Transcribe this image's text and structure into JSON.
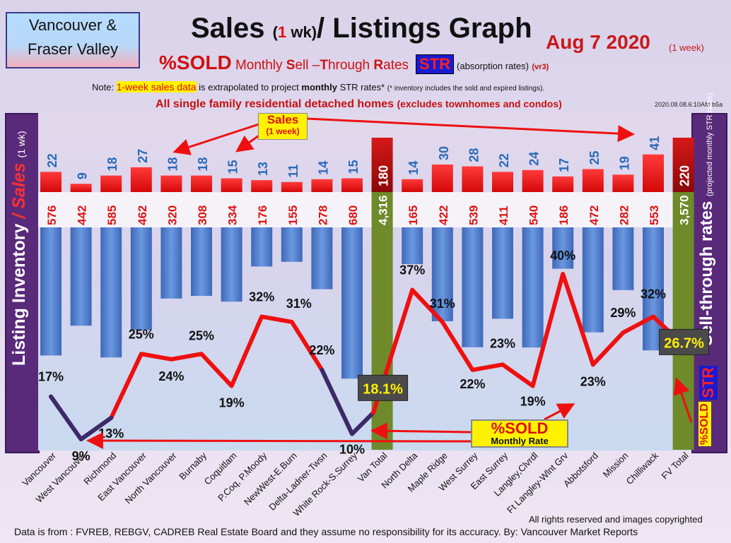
{
  "header": {
    "region_line1": "Vancouver &",
    "region_line2": "Fraser Valley",
    "title_a": "Sales ",
    "title_b": "(",
    "title_c": "1",
    "title_d": " wk)",
    "title_e": "/ Listings Graph",
    "date": "Aug 7  2020",
    "date_sub": "(1 week)",
    "subtitle_sold": "%SOLD",
    "subtitle_rest_1": " Monthly ",
    "subtitle_s": "S",
    "subtitle_rest_2": "ell –",
    "subtitle_t": "T",
    "subtitle_rest_3": "hrough ",
    "subtitle_r": "R",
    "subtitle_rest_4": "ates",
    "str_badge": "STR",
    "absorption": "(absorption rates)",
    "vr": "(vr3)",
    "note_a": "Note: ",
    "note_hl": "1-week sales data",
    "note_b": " is extrapolated to project ",
    "note_c": "monthly",
    "note_d": " STR rates* ",
    "note_e": "(* inventory includes the sold and expired listings).",
    "scope_a": "All single family residential detached homes ",
    "scope_b": "(excludes townhomes and condos)",
    "timestamp": "2020.08.08.6:10AM b5a"
  },
  "axes": {
    "left_a": "Listing Inventory ",
    "left_b": "/ Sales ",
    "left_c": "(1 wk)",
    "right_a": "Sell-through rates ",
    "right_b": "(projected monthly STR rates)",
    "right_str": "STR",
    "right_sold": "%SOLD"
  },
  "callouts": {
    "sales_1": "Sales",
    "sales_2": "(1 week)",
    "sold_1": "%SOLD",
    "sold_2": "Monthly Rate"
  },
  "footer": {
    "copyright": "All rights reserved and  images copyrighted",
    "source": "Data is from : FVREB, REBGV, CADREB Real Estate Board and they assume no responsibility for its accuracy. By: Vancouver Market Reports"
  },
  "colors": {
    "sales_bar": "#ee1010",
    "inventory_bar": "#4a78c8",
    "total_bar": "#6e8a2a",
    "total_sales": "#b01010",
    "label_blue": "#2a6ab8",
    "label_red": "#e01010",
    "line": "#ee1010",
    "total_badge": "#4a4a4a",
    "total_badge_text": "#fff200"
  },
  "chart_data": {
    "type": "bar",
    "categories": [
      "Vancouver",
      "West Vancouver",
      "Richmond",
      "East Vancouver",
      "North Vancouver",
      "Burnaby",
      "Coquitlam",
      "P.Coq, P.Moody",
      "NewWest-E.Burn",
      "Delta-Ladner-Twsn",
      "White Rock-S.Surrey",
      "Van Total",
      "North Delta",
      "Maple Ridge",
      "West Surrey",
      "East Surrey",
      "Langley,Clvrdl",
      "Ft Langley-Wlnt Grv",
      "Abbotsford",
      "Mission",
      "Chilliwack",
      "FV Total"
    ],
    "series": [
      {
        "name": "Sales",
        "values": [
          22,
          9,
          18,
          27,
          18,
          18,
          15,
          13,
          11,
          14,
          15,
          180,
          14,
          30,
          28,
          22,
          24,
          17,
          25,
          19,
          41,
          220
        ]
      },
      {
        "name": "Listing Inventory",
        "values": [
          576,
          442,
          585,
          462,
          320,
          308,
          334,
          176,
          155,
          278,
          680,
          4316,
          165,
          422,
          539,
          411,
          540,
          186,
          472,
          282,
          553,
          3570
        ]
      },
      {
        "name": "%SOLD",
        "values": [
          17,
          9,
          13,
          25,
          24,
          25,
          19,
          32,
          31,
          22,
          10,
          18.1,
          37,
          31,
          22,
          23,
          19,
          40,
          23,
          29,
          32,
          26.7
        ]
      }
    ],
    "sales_labels": [
      "22",
      "9",
      "18",
      "27",
      "18",
      "18",
      "15",
      "13",
      "11",
      "14",
      "15",
      "180",
      "14",
      "30",
      "28",
      "22",
      "24",
      "17",
      "25",
      "19",
      "41",
      "220"
    ],
    "inventory_labels": [
      "576",
      "442",
      "585",
      "462",
      "320",
      "308",
      "334",
      "176",
      "155",
      "278",
      "680",
      "4,316",
      "165",
      "422",
      "539",
      "411",
      "540",
      "186",
      "472",
      "282",
      "553",
      "3,570"
    ],
    "sold_labels": [
      "17%",
      "9%",
      "13%",
      "25%",
      "24%",
      "25%",
      "19%",
      "32%",
      "31%",
      "22%",
      "10%",
      "18.1%",
      "37%",
      "31%",
      "22%",
      "23%",
      "19%",
      "40%",
      "23%",
      "29%",
      "32%",
      "26.7%"
    ],
    "totals": [
      11,
      21
    ]
  }
}
